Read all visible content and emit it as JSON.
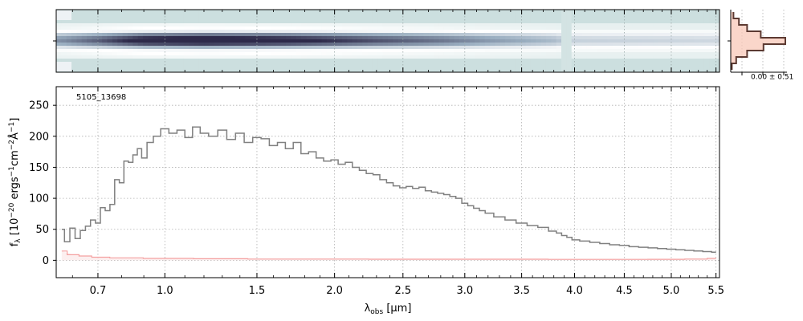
{
  "chart_data": [
    {
      "panel": "spectrum-2d",
      "type": "heatmap",
      "x_scale": "sqrt-wavelength",
      "xlim_um": [
        0.54,
        5.54
      ],
      "colormap": [
        "#c8dcdc",
        "#ffffff",
        "#9aaec0",
        "#2e2a4a"
      ],
      "grid": true,
      "trace_profile": [
        {
          "row": -3,
          "value": 0.15
        },
        {
          "row": -2,
          "value": 0.55
        },
        {
          "row": -1,
          "value": 0.85
        },
        {
          "row": 0,
          "value": 1.0
        },
        {
          "row": 1,
          "value": 0.75
        },
        {
          "row": 2,
          "value": 0.35
        },
        {
          "row": 3,
          "value": 0.1
        }
      ],
      "source_flux_profile": [
        {
          "x": 0.56,
          "level": 0.35
        },
        {
          "x": 0.7,
          "level": 0.55
        },
        {
          "x": 0.9,
          "level": 0.9
        },
        {
          "x": 1.2,
          "level": 1.0
        },
        {
          "x": 1.7,
          "level": 0.85
        },
        {
          "x": 2.3,
          "level": 0.6
        },
        {
          "x": 2.8,
          "level": 0.45
        },
        {
          "x": 3.2,
          "level": 0.3
        },
        {
          "x": 3.8,
          "level": 0.15
        },
        {
          "x": 3.95,
          "level": 0.05
        },
        {
          "x": 4.5,
          "level": 0.04
        },
        {
          "x": 5.0,
          "level": 0.03
        },
        {
          "x": 5.5,
          "level": 0.02
        }
      ],
      "chip_gap_um": [
        3.88,
        3.95
      ]
    },
    {
      "panel": "profile",
      "type": "line",
      "annotation": "0.00 ± 0.51",
      "profile_rows": [
        -4,
        -3,
        -2,
        -1,
        0,
        1,
        2,
        3,
        4
      ],
      "profile_values": [
        0.05,
        0.15,
        0.3,
        0.55,
        1.0,
        0.6,
        0.3,
        0.1,
        0.02
      ],
      "fill_color": "#f8c8b8",
      "line_color": "#5c3a32"
    },
    {
      "panel": "spectrum-1d",
      "type": "line",
      "id_label": "5105_13698",
      "xlabel_symbol": "λ",
      "xlabel_sub": "obs",
      "xlabel_unit": " [μm]",
      "ylabel_main": "f",
      "ylabel_sub": "λ",
      "ylabel_exp1": "−20",
      "ylabel_mid1": " ergs",
      "ylabel_exp2": "−1",
      "ylabel_mid2": "cm",
      "ylabel_exp3": "−2",
      "ylabel_mid3": "Å",
      "ylabel_exp4": "−1",
      "ylabel_open": " [10",
      "ylabel_close": "]",
      "x_scale": "sqrt-wavelength",
      "xlim": [
        0.54,
        5.54
      ],
      "ylim": [
        -28,
        280
      ],
      "x_ticks": [
        0.7,
        1.0,
        1.5,
        2.0,
        2.5,
        3.0,
        3.5,
        4.0,
        4.5,
        5.0,
        5.5
      ],
      "x_tick_labels": [
        "0.7",
        "1.0",
        "1.5",
        "2.0",
        "2.5",
        "3.0",
        "3.5",
        "4.0",
        "4.5",
        "5.0",
        "5.5"
      ],
      "y_ticks": [
        0,
        50,
        100,
        150,
        200,
        250
      ],
      "y_tick_labels": [
        "0",
        "50",
        "100",
        "150",
        "200",
        "250"
      ],
      "grid": true,
      "series": [
        {
          "role": "flux",
          "color": "#808080",
          "x": [
            0.56,
            0.58,
            0.6,
            0.62,
            0.64,
            0.66,
            0.68,
            0.7,
            0.72,
            0.74,
            0.76,
            0.78,
            0.8,
            0.82,
            0.84,
            0.86,
            0.88,
            0.9,
            0.93,
            0.96,
            1.0,
            1.04,
            1.08,
            1.12,
            1.16,
            1.2,
            1.25,
            1.3,
            1.35,
            1.4,
            1.45,
            1.5,
            1.55,
            1.6,
            1.65,
            1.7,
            1.75,
            1.8,
            1.85,
            1.9,
            1.95,
            2.0,
            2.05,
            2.1,
            2.15,
            2.2,
            2.25,
            2.3,
            2.35,
            2.4,
            2.45,
            2.5,
            2.55,
            2.6,
            2.65,
            2.7,
            2.75,
            2.8,
            2.85,
            2.9,
            2.95,
            3.0,
            3.05,
            3.1,
            3.15,
            3.2,
            3.3,
            3.4,
            3.5,
            3.6,
            3.7,
            3.8,
            3.85,
            3.9,
            3.95,
            4.0,
            4.1,
            4.2,
            4.3,
            4.4,
            4.5,
            4.6,
            4.7,
            4.8,
            4.9,
            5.0,
            5.1,
            5.2,
            5.3,
            5.4,
            5.5
          ],
          "y": [
            50,
            30,
            52,
            35,
            48,
            55,
            65,
            60,
            85,
            80,
            90,
            130,
            125,
            160,
            158,
            170,
            180,
            165,
            190,
            200,
            212,
            205,
            210,
            198,
            215,
            205,
            200,
            210,
            195,
            205,
            190,
            198,
            196,
            185,
            190,
            180,
            190,
            172,
            175,
            165,
            160,
            162,
            155,
            158,
            150,
            145,
            140,
            138,
            130,
            125,
            120,
            117,
            119,
            116,
            118,
            112,
            110,
            108,
            106,
            103,
            100,
            92,
            88,
            84,
            80,
            76,
            70,
            65,
            60,
            56,
            53,
            47,
            44,
            40,
            37,
            33,
            31,
            29,
            27,
            25,
            24,
            22,
            21,
            20,
            19,
            18,
            17,
            16,
            15,
            14,
            13
          ]
        },
        {
          "role": "error",
          "color": "#f4a0a0",
          "x": [
            0.56,
            0.6,
            0.65,
            0.7,
            0.8,
            1.0,
            1.3,
            1.6,
            2.0,
            2.5,
            3.0,
            3.5,
            4.0,
            4.5,
            5.0,
            5.3,
            5.5
          ],
          "y": [
            15,
            9,
            7,
            5,
            4,
            3,
            2.5,
            2,
            2,
            1.8,
            1.8,
            1.8,
            1.5,
            1.5,
            1.6,
            2,
            3
          ]
        }
      ]
    }
  ]
}
